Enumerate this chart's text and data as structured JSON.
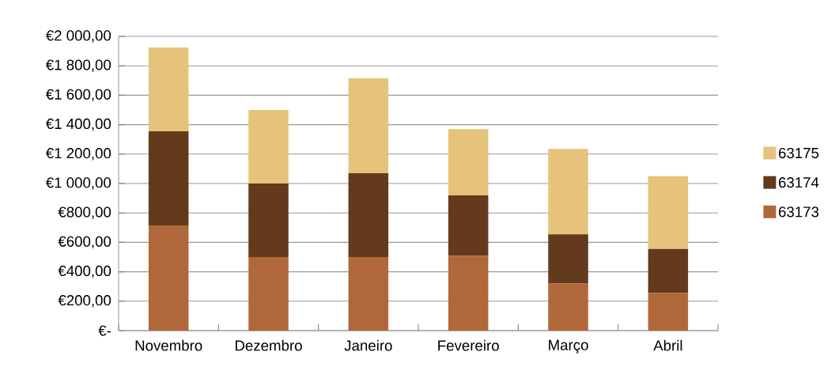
{
  "chart_data": {
    "type": "bar",
    "stacked": true,
    "categories": [
      "Novembro",
      "Dezembro",
      "Janeiro",
      "Fevereiro",
      "Março",
      "Abril"
    ],
    "series": [
      {
        "name": "63173",
        "color": "#b0683a",
        "values": [
          715,
          500,
          500,
          510,
          320,
          255
        ]
      },
      {
        "name": "63174",
        "color": "#633a1c",
        "values": [
          640,
          500,
          570,
          410,
          335,
          300
        ]
      },
      {
        "name": "63175",
        "color": "#e6c37b",
        "values": [
          570,
          500,
          645,
          450,
          580,
          495
        ]
      }
    ],
    "ylim": [
      0,
      2000
    ],
    "yticks": [
      {
        "value": 0,
        "label": "€-"
      },
      {
        "value": 200,
        "label": "€200,00"
      },
      {
        "value": 400,
        "label": "€400,00"
      },
      {
        "value": 600,
        "label": "€600,00"
      },
      {
        "value": 800,
        "label": "€800,00"
      },
      {
        "value": 1000,
        "label": "€1 000,00"
      },
      {
        "value": 1200,
        "label": "€1 200,00"
      },
      {
        "value": 1400,
        "label": "€1 400,00"
      },
      {
        "value": 1600,
        "label": "€1 600,00"
      },
      {
        "value": 1800,
        "label": "€1 800,00"
      },
      {
        "value": 2000,
        "label": "€2 000,00"
      }
    ],
    "grid": "y",
    "legend": "right"
  }
}
